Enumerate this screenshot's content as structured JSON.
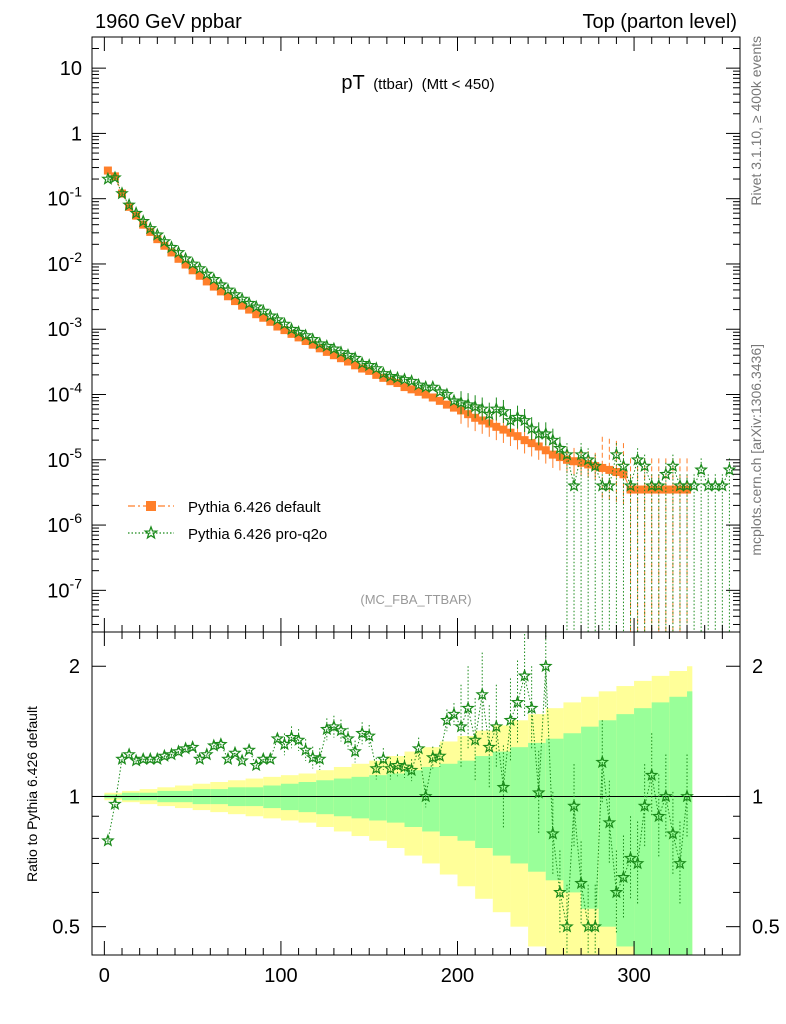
{
  "header": {
    "left": "1960 GeV ppbar",
    "right": "Top (parton level)"
  },
  "side_labels": {
    "rivet": "Rivet 3.1.10, ≥ 400k events",
    "mcplots": "mcplots.cern.ch [arXiv:1306.3436]"
  },
  "colors": {
    "default": "#ff7f2a",
    "pro": "#1a8a1a",
    "band_yellow": "#ffff99",
    "band_green": "#99ff99"
  },
  "chart_data": [
    {
      "type": "scatter",
      "title_main": "pT",
      "title_sub": "(ttbar)",
      "title_cut": "(Mtt < 450)",
      "analysis": "(MC_FBA_TTBAR)",
      "yscale": "log",
      "xlim": [
        -7,
        360
      ],
      "ylim": [
        2.3e-08,
        30
      ],
      "ytick_values": [
        1e-07,
        1e-06,
        1e-05,
        0.0001,
        0.001,
        0.01,
        0.1,
        1,
        10
      ],
      "ytick_labels": [
        {
          "base": "10",
          "exp": "-7"
        },
        {
          "base": "10",
          "exp": "-6"
        },
        {
          "base": "10",
          "exp": "-5"
        },
        {
          "base": "10",
          "exp": "-4"
        },
        {
          "base": "10",
          "exp": "-3"
        },
        {
          "base": "10",
          "exp": "-2"
        },
        {
          "base": "10",
          "exp": "-1"
        },
        {
          "base": "1",
          "exp": ""
        },
        {
          "base": "10",
          "exp": ""
        }
      ],
      "legend": [
        {
          "label": "Pythia 6.426 default",
          "key": "default"
        },
        {
          "label": "Pythia 6.426 pro-q2o",
          "key": "pro"
        }
      ],
      "legend_position": "lower-left",
      "series": [
        {
          "name": "Pythia 6.426 default",
          "x": [
            2,
            6,
            10,
            14,
            18,
            22,
            26,
            30,
            34,
            38,
            42,
            46,
            50,
            54,
            58,
            62,
            66,
            70,
            74,
            78,
            82,
            86,
            90,
            94,
            98,
            102,
            106,
            110,
            114,
            118,
            122,
            126,
            130,
            134,
            138,
            142,
            146,
            150,
            154,
            158,
            162,
            166,
            170,
            174,
            178,
            182,
            186,
            190,
            194,
            198,
            202,
            206,
            210,
            214,
            218,
            222,
            226,
            230,
            234,
            238,
            242,
            246,
            250,
            254,
            258,
            262,
            266,
            270,
            274,
            278,
            282,
            286,
            290,
            294,
            298,
            302,
            306,
            310,
            314,
            318,
            322,
            326,
            330
          ],
          "y": [
            0.27,
            0.22,
            0.12,
            0.075,
            0.055,
            0.04,
            0.031,
            0.024,
            0.019,
            0.015,
            0.012,
            0.0098,
            0.008,
            0.0066,
            0.0054,
            0.0045,
            0.0038,
            0.0032,
            0.0027,
            0.0023,
            0.002,
            0.0017,
            0.0015,
            0.0013,
            0.0011,
            0.00097,
            0.00085,
            0.00075,
            0.00066,
            0.00058,
            0.00051,
            0.00045,
            0.0004,
            0.00036,
            0.00032,
            0.00028,
            0.00025,
            0.00023,
            0.0002,
            0.00018,
            0.00016,
            0.00015,
            0.00013,
            0.00012,
            0.00011,
            0.0001,
            9e-05,
            8e-05,
            7e-05,
            6.3e-05,
            5.7e-05,
            5e-05,
            4.4e-05,
            4e-05,
            3.6e-05,
            3.2e-05,
            2.9e-05,
            2.6e-05,
            2.3e-05,
            2e-05,
            1.8e-05,
            1.6e-05,
            1.4e-05,
            1.2e-05,
            1.1e-05,
            1e-05,
            9.5e-06,
            9e-06,
            8.5e-06,
            8e-06,
            7.5e-06,
            7e-06,
            6.5e-06,
            6e-06,
            3.5e-06,
            3.5e-06,
            3.5e-06,
            3.5e-06,
            3.5e-06,
            3.5e-06,
            3.5e-06,
            3.5e-06,
            3.5e-06
          ]
        },
        {
          "name": "Pythia 6.426 pro-q2o",
          "x": [
            2,
            6,
            10,
            14,
            18,
            22,
            26,
            30,
            34,
            38,
            42,
            46,
            50,
            54,
            58,
            62,
            66,
            70,
            74,
            78,
            82,
            86,
            90,
            94,
            98,
            102,
            106,
            110,
            114,
            118,
            122,
            126,
            130,
            134,
            138,
            142,
            146,
            150,
            154,
            158,
            162,
            166,
            170,
            174,
            178,
            182,
            186,
            190,
            194,
            198,
            202,
            206,
            210,
            214,
            218,
            222,
            226,
            230,
            234,
            238,
            242,
            246,
            250,
            254,
            258,
            262,
            266,
            270,
            274,
            278,
            282,
            286,
            290,
            294,
            298,
            302,
            306,
            310,
            314,
            318,
            322,
            326,
            330,
            334,
            338,
            342,
            346,
            350,
            354
          ],
          "y": [
            0.2,
            0.21,
            0.12,
            0.08,
            0.06,
            0.045,
            0.035,
            0.028,
            0.022,
            0.018,
            0.015,
            0.012,
            0.01,
            0.0085,
            0.007,
            0.0058,
            0.0048,
            0.004,
            0.0034,
            0.0029,
            0.0025,
            0.0022,
            0.0019,
            0.0016,
            0.0014,
            0.0012,
            0.001,
            0.0009,
            0.0008,
            0.0007,
            0.0006,
            0.00055,
            0.0005,
            0.00044,
            0.0004,
            0.00036,
            0.0003,
            0.00028,
            0.00025,
            0.00021,
            0.00019,
            0.00018,
            0.00017,
            0.00016,
            0.00014,
            0.00013,
            0.00013,
            0.00011,
            0.0001,
            8e-05,
            7.5e-05,
            7e-05,
            6.5e-05,
            6e-05,
            5e-05,
            6e-05,
            5.5e-05,
            4e-05,
            4.5e-05,
            4e-05,
            3e-05,
            2.5e-05,
            2.5e-05,
            2e-05,
            1.5e-05,
            1.2e-05,
            4e-06,
            1.2e-05,
            1e-05,
            8e-06,
            4e-06,
            4e-06,
            1.2e-05,
            8e-06,
            4e-06,
            1e-05,
            8e-06,
            4e-06,
            4e-06,
            6e-06,
            8e-06,
            4e-06,
            4e-06,
            4e-06,
            7e-06,
            4e-06,
            4e-06,
            4e-06,
            7e-06
          ]
        }
      ]
    },
    {
      "type": "scatter",
      "ylabel": "Ratio to Pythia 6.426 default",
      "yscale": "log",
      "xlim": [
        -7,
        360
      ],
      "ylim": [
        0.43,
        2.4
      ],
      "xticks": [
        0,
        100,
        200,
        300
      ],
      "xtick_labels": [
        "0",
        "100",
        "200",
        "300"
      ],
      "ytick_values": [
        0.5,
        1,
        2
      ],
      "ytick_labels": [
        "0.5",
        "1",
        "2"
      ],
      "bands": {
        "x": [
          0,
          10,
          20,
          30,
          40,
          50,
          60,
          70,
          80,
          90,
          100,
          110,
          120,
          130,
          140,
          150,
          160,
          170,
          180,
          190,
          200,
          210,
          220,
          230,
          240,
          250,
          260,
          270,
          280,
          290,
          300,
          310,
          320,
          330
        ],
        "yellow_half": [
          0.02,
          0.03,
          0.04,
          0.05,
          0.06,
          0.07,
          0.08,
          0.09,
          0.1,
          0.11,
          0.12,
          0.13,
          0.15,
          0.17,
          0.19,
          0.21,
          0.24,
          0.27,
          0.3,
          0.34,
          0.38,
          0.42,
          0.46,
          0.5,
          0.55,
          0.6,
          0.65,
          0.7,
          0.75,
          0.8,
          0.85,
          0.9,
          0.95,
          1.0
        ],
        "green_half": [
          0.01,
          0.02,
          0.02,
          0.03,
          0.03,
          0.04,
          0.04,
          0.05,
          0.05,
          0.06,
          0.07,
          0.08,
          0.09,
          0.1,
          0.11,
          0.12,
          0.13,
          0.15,
          0.17,
          0.19,
          0.21,
          0.24,
          0.27,
          0.3,
          0.33,
          0.36,
          0.4,
          0.45,
          0.5,
          0.55,
          0.6,
          0.65,
          0.7,
          0.75
        ]
      },
      "series": [
        {
          "name": "Pythia 6.426 pro-q2o / default",
          "x": [
            2,
            6,
            10,
            14,
            18,
            22,
            26,
            30,
            34,
            38,
            42,
            46,
            50,
            54,
            58,
            62,
            66,
            70,
            74,
            78,
            82,
            86,
            90,
            94,
            98,
            102,
            106,
            110,
            114,
            118,
            122,
            126,
            130,
            134,
            138,
            142,
            146,
            150,
            154,
            158,
            162,
            166,
            170,
            174,
            178,
            182,
            186,
            190,
            194,
            198,
            202,
            206,
            210,
            214,
            218,
            222,
            226,
            230,
            234,
            238,
            242,
            246,
            250,
            254,
            258,
            262,
            266,
            270,
            274,
            278,
            282,
            286,
            290,
            294,
            298,
            302,
            306,
            310,
            314,
            318,
            322,
            326,
            330
          ],
          "y": [
            0.79,
            0.96,
            1.22,
            1.25,
            1.21,
            1.22,
            1.22,
            1.22,
            1.24,
            1.25,
            1.27,
            1.29,
            1.3,
            1.22,
            1.25,
            1.31,
            1.32,
            1.22,
            1.26,
            1.21,
            1.28,
            1.18,
            1.22,
            1.22,
            1.36,
            1.32,
            1.37,
            1.35,
            1.28,
            1.23,
            1.22,
            1.43,
            1.45,
            1.42,
            1.36,
            1.27,
            1.4,
            1.38,
            1.16,
            1.22,
            1.16,
            1.18,
            1.17,
            1.15,
            1.29,
            1.0,
            1.23,
            1.24,
            1.5,
            1.55,
            1.45,
            1.6,
            1.35,
            1.72,
            1.3,
            1.45,
            1.05,
            1.5,
            1.65,
            1.9,
            1.6,
            1.02,
            2.0,
            0.82,
            0.6,
            0.5,
            0.95,
            0.63,
            0.5,
            0.5,
            1.2,
            0.87,
            0.6,
            0.65,
            0.72,
            0.7,
            0.95,
            1.12,
            0.9,
            1.0,
            0.82,
            0.7,
            1.0
          ]
        }
      ]
    }
  ]
}
